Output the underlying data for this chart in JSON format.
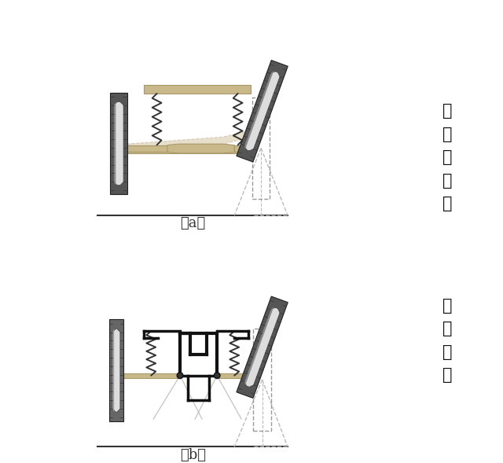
{
  "bg_color": "#ffffff",
  "title_a": "（a）",
  "title_b": "（b）",
  "label_a": "非\n独\n立\n悬\n架",
  "label_b": "独\n立\n悬\n架",
  "wheel_dark": "#555555",
  "wheel_mid": "#888888",
  "wheel_light": "#cccccc",
  "axle_tan": "#c8b88a",
  "axle_tan_dark": "#a89868",
  "spring_color": "#222222",
  "dashed_color": "#ccbbaa",
  "ground_color": "#222222",
  "fig_width": 6.4,
  "fig_height": 5.89,
  "label_fontsize": 15,
  "caption_fontsize": 13
}
